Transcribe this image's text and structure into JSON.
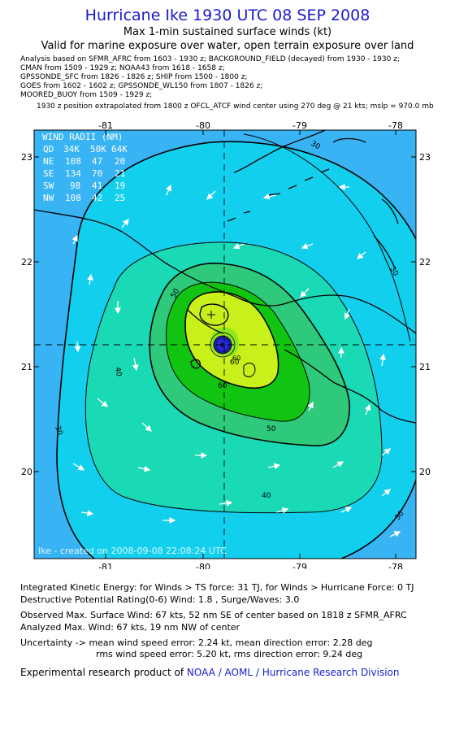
{
  "header": {
    "title": "Hurricane Ike 1930 UTC 08 SEP 2008",
    "subtitle": "Max 1-min sustained surface winds (kt)",
    "valid_for": "Valid for marine exposure over water, open terrain exposure over land"
  },
  "analysis_lines": [
    "Analysis based on  SFMR_AFRC from 1603 - 1930 z;  BACKGROUND_FIELD (decayed) from 1930 - 1930 z;",
    "CMAN from 1509 - 1929 z;  NOAA43 from 1618 - 1658 z;",
    "GPSSONDE_SFC from 1826 - 1826 z;  SHIP from 1500 - 1800 z;",
    "GOES from 1602 - 1602 z;  GPSSONDE_WL150 from 1807 - 1826 z;",
    "MOORED_BUOY from 1509 - 1929 z;"
  ],
  "position_note": "1930 z position extrapolated from 1800 z OFCL_ATCF wind center using 270 deg @ 21 kts; mslp = 970.0 mb",
  "map": {
    "lon_ticks": [
      "-81",
      "-80",
      "-79",
      "-78"
    ],
    "lat_ticks": [
      "23",
      "22",
      "21",
      "20"
    ],
    "contour_labels": {
      "c30_top": "30",
      "c30_left": "30",
      "c30_right": "30",
      "c30_bottom": "30",
      "c40_left": "40",
      "c40_bottom": "40",
      "c50_upper": "50",
      "c50_lower": "50",
      "c60_a": "60",
      "c60_b": "60",
      "c60_c": "60"
    },
    "wind_radii": {
      "title": "WIND RADII (NM)",
      "header": [
        "QD",
        "34K",
        "50K",
        "64K"
      ],
      "rows": [
        [
          "NE",
          "108",
          "47",
          "20"
        ],
        [
          "SE",
          "134",
          "70",
          "21"
        ],
        [
          "SW",
          "98",
          "41",
          "19"
        ],
        [
          "NW",
          "108",
          "42",
          "25"
        ]
      ]
    },
    "created_stamp": "Ike - created on 2008-09-08 22:08:24 UTC",
    "colors": {
      "ocean_dark": "#1f8fef",
      "lt30": "#38b4f4",
      "c30_40": "#12cfee",
      "c40_50": "#1ad9b5",
      "c50_60": "#2ec97a",
      "c60_64": "#12c412",
      "c64_70": "#c8f01a",
      "eye": "#1c1ca8"
    }
  },
  "footer": {
    "ike": "Integrated Kinetic Energy:  for Winds > TS force: 31 TJ,  for Winds > Hurricane Force: 0 TJ",
    "dpr": "Destructive Potential Rating(0-6)   Wind: 1.8 , Surge/Waves: 3.0",
    "observed": "Observed Max. Surface Wind: 67 kts, 52 nm SE of center based on 1818 z SFMR_AFRC",
    "analyzed": "Analyzed Max. Wind: 67 kts, 19 nm NW of center",
    "uncertainty1": "Uncertainty -> mean wind speed error: 2.24 kt,   mean direction error: 2.28 deg",
    "uncertainty2": "rms wind speed error: 5.20 kt,   rms direction error: 9.24 deg",
    "credit_prefix": "Experimental research product of ",
    "credit_org": "NOAA / AOML / Hurricane Research Division"
  }
}
